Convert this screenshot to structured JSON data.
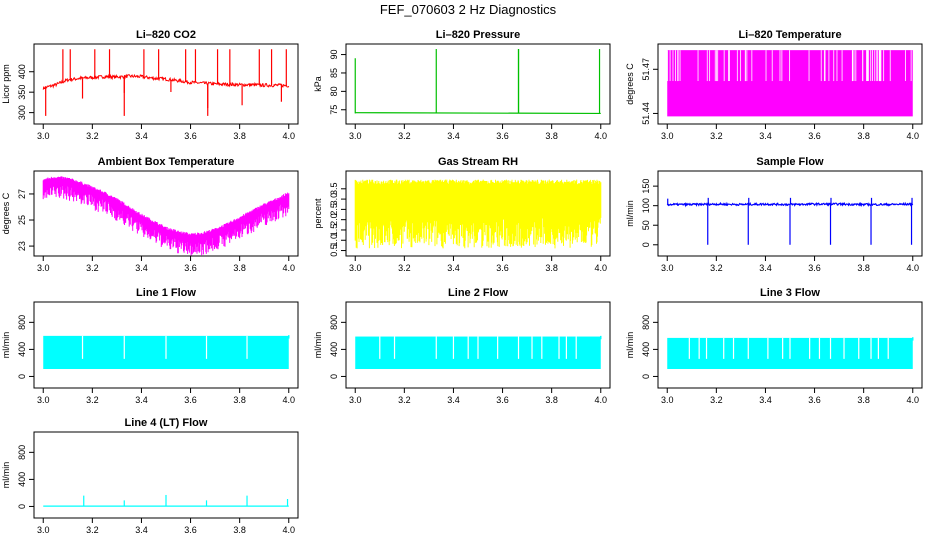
{
  "figure": {
    "title": "FEF_070603  2 Hz Diagnostics"
  },
  "chart_data": [
    {
      "type": "line",
      "title": "Li–820 CO2",
      "xlabel": "",
      "ylabel": "Licor ppm",
      "xlim": [
        3.0,
        4.0
      ],
      "ylim": [
        280,
        460
      ],
      "xticks": [
        3.0,
        3.2,
        3.4,
        3.6,
        3.8,
        4.0
      ],
      "yticks": [
        300,
        350,
        400
      ],
      "series": [
        {
          "color": "#ff0000",
          "x": [
            3.0,
            3.05,
            3.1,
            3.15,
            3.2,
            3.25,
            3.3,
            3.35,
            3.4,
            3.45,
            3.5,
            3.55,
            3.6,
            3.65,
            3.7,
            3.75,
            3.8,
            3.85,
            3.9,
            3.95,
            4.0
          ],
          "y": [
            360,
            368,
            380,
            384,
            386,
            388,
            387,
            389,
            388,
            384,
            382,
            378,
            374,
            372,
            370,
            369,
            368,
            368,
            367,
            367,
            366
          ]
        }
      ]
    },
    {
      "type": "line",
      "title": "Li–820 Pressure",
      "xlabel": "",
      "ylabel": "kPa",
      "xlim": [
        3.0,
        4.0
      ],
      "ylim": [
        72,
        92
      ],
      "xticks": [
        3.0,
        3.2,
        3.4,
        3.6,
        3.8,
        4.0
      ],
      "yticks": [
        75,
        80,
        85,
        90
      ],
      "series": [
        {
          "color": "#00c000",
          "x": [
            3.0,
            3.1,
            3.2,
            3.3,
            3.4,
            3.5,
            3.6,
            3.7,
            3.8,
            3.9,
            4.0
          ],
          "y": [
            74.2,
            74.0,
            74.0,
            74.0,
            74.0,
            74.1,
            74.0,
            74.0,
            74.1,
            74.0,
            74.0
          ]
        }
      ]
    },
    {
      "type": "line",
      "title": "Li–820 Temperature",
      "xlabel": "",
      "ylabel": "degrees C",
      "xlim": [
        3.0,
        4.0
      ],
      "ylim": [
        51.435,
        51.485
      ],
      "xticks": [
        3.0,
        3.2,
        3.4,
        3.6,
        3.8,
        4.0
      ],
      "yticks": [
        51.44,
        51.47
      ],
      "series": [
        {
          "color": "#ff00ff",
          "x": [
            3.0,
            4.0
          ],
          "y": [
            51.44,
            51.48
          ]
        }
      ]
    },
    {
      "type": "line",
      "title": "Ambient Box Temperature",
      "xlabel": "",
      "ylabel": "degrees C",
      "xlim": [
        3.0,
        4.0
      ],
      "ylim": [
        22.5,
        28.5
      ],
      "xticks": [
        3.0,
        3.2,
        3.4,
        3.6,
        3.8,
        4.0
      ],
      "yticks": [
        23,
        25,
        27
      ],
      "series": [
        {
          "color": "#ff00ff",
          "x": [
            3.0,
            3.05,
            3.1,
            3.15,
            3.2,
            3.25,
            3.3,
            3.35,
            3.4,
            3.45,
            3.5,
            3.55,
            3.6,
            3.65,
            3.7,
            3.75,
            3.8,
            3.85,
            3.9,
            3.95,
            4.0
          ],
          "y": [
            27.8,
            28.0,
            27.9,
            27.6,
            27.2,
            26.8,
            26.3,
            25.7,
            25.1,
            24.6,
            24.1,
            23.8,
            23.6,
            23.7,
            24.0,
            24.4,
            24.9,
            25.4,
            25.9,
            26.3,
            26.8
          ]
        }
      ]
    },
    {
      "type": "area",
      "title": "Gas Stream RH",
      "xlabel": "",
      "ylabel": "percent",
      "xlim": [
        3.0,
        4.0
      ],
      "ylim": [
        0.4,
        4.2
      ],
      "xticks": [
        3.0,
        3.2,
        3.4,
        3.6,
        3.8,
        4.0
      ],
      "yticks": [
        0.5,
        1.0,
        1.5,
        2.0,
        2.5,
        3.0,
        3.5
      ],
      "series": [
        {
          "color": "#ffff00",
          "x": [
            3.0,
            4.0
          ],
          "y": [
            0.6,
            3.9
          ]
        }
      ]
    },
    {
      "type": "line",
      "title": "Sample Flow",
      "xlabel": "",
      "ylabel": "ml/min",
      "xlim": [
        3.0,
        4.0
      ],
      "ylim": [
        -20,
        180
      ],
      "xticks": [
        3.0,
        3.2,
        3.4,
        3.6,
        3.8,
        4.0
      ],
      "yticks": [
        0,
        50,
        100,
        150
      ],
      "series": [
        {
          "color": "#0000ff",
          "x": [
            3.0,
            3.1,
            3.2,
            3.3,
            3.4,
            3.5,
            3.6,
            3.7,
            3.8,
            3.9,
            4.0
          ],
          "y": [
            103,
            103,
            104,
            103,
            104,
            103,
            104,
            104,
            103,
            103,
            104
          ]
        }
      ]
    },
    {
      "type": "area",
      "title": "Line 1 Flow",
      "xlabel": "",
      "ylabel": "ml/min",
      "xlim": [
        3.0,
        4.0
      ],
      "ylim": [
        -120,
        1050
      ],
      "xticks": [
        3.0,
        3.2,
        3.4,
        3.6,
        3.8,
        4.0
      ],
      "yticks": [
        0,
        400,
        800
      ],
      "series": [
        {
          "color": "#00ffff",
          "x": [
            3.0,
            4.0
          ],
          "y": [
            110,
            600
          ]
        }
      ]
    },
    {
      "type": "area",
      "title": "Line 2 Flow",
      "xlabel": "",
      "ylabel": "ml/min",
      "xlim": [
        3.0,
        4.0
      ],
      "ylim": [
        -120,
        1050
      ],
      "xticks": [
        3.0,
        3.2,
        3.4,
        3.6,
        3.8,
        4.0
      ],
      "yticks": [
        0,
        400,
        800
      ],
      "series": [
        {
          "color": "#00ffff",
          "x": [
            3.0,
            4.0
          ],
          "y": [
            110,
            590
          ]
        }
      ]
    },
    {
      "type": "area",
      "title": "Line 3 Flow",
      "xlabel": "",
      "ylabel": "ml/min",
      "xlim": [
        3.0,
        4.0
      ],
      "ylim": [
        -120,
        1050
      ],
      "xticks": [
        3.0,
        3.2,
        3.4,
        3.6,
        3.8,
        4.0
      ],
      "yticks": [
        0,
        400,
        800
      ],
      "series": [
        {
          "color": "#00ffff",
          "x": [
            3.0,
            4.0
          ],
          "y": [
            110,
            570
          ]
        }
      ]
    },
    {
      "type": "line",
      "title": "Line 4 (LT) Flow",
      "xlabel": "",
      "ylabel": "ml/min",
      "xlim": [
        3.0,
        4.0
      ],
      "ylim": [
        -120,
        1050
      ],
      "xticks": [
        3.0,
        3.2,
        3.4,
        3.6,
        3.8,
        4.0
      ],
      "yticks": [
        0,
        400,
        800
      ],
      "series": [
        {
          "color": "#00ffff",
          "x": [
            3.0,
            3.2,
            3.4,
            3.6,
            3.8,
            4.0
          ],
          "y": [
            5,
            5,
            5,
            5,
            5,
            5
          ]
        }
      ]
    }
  ]
}
